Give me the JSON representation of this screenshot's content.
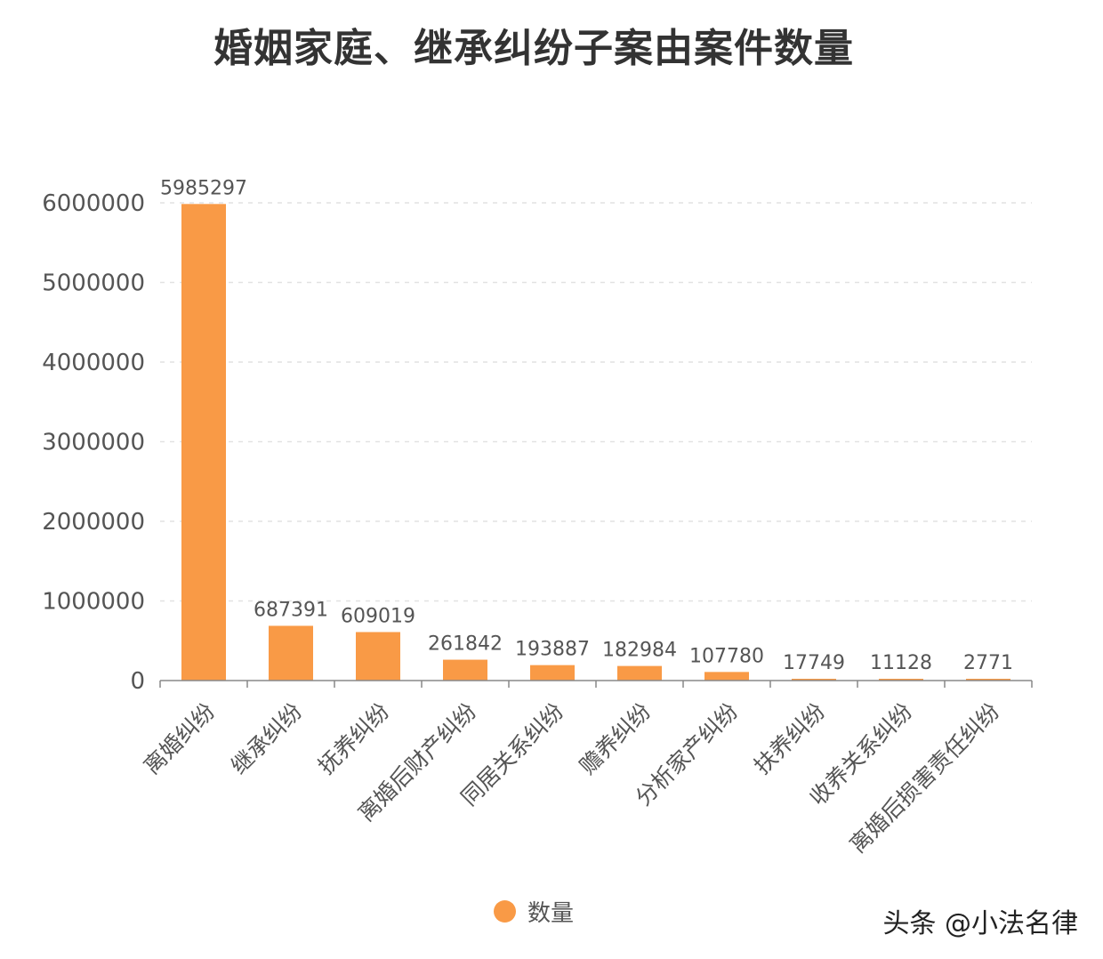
{
  "chart_data": {
    "type": "bar",
    "title": "婚姻家庭、继承纠纷子案由案件数量",
    "categories": [
      "离婚纠纷",
      "继承纠纷",
      "抚养纠纷",
      "离婚后财产纠纷",
      "同居关系纠纷",
      "赡养纠纷",
      "分析家产纠纷",
      "扶养纠纷",
      "收养关系纠纷",
      "离婚后损害责任纠纷"
    ],
    "series": [
      {
        "name": "数量",
        "values": [
          5985297,
          687391,
          609019,
          261842,
          193887,
          182984,
          107780,
          17749,
          11128,
          2771
        ]
      }
    ],
    "data_labels": [
      "5985297",
      "687391",
      "609019",
      "261842",
      "193887",
      "182984",
      "107780",
      "17749",
      "11128",
      "2771"
    ],
    "ylim": [
      0,
      6000000
    ],
    "yticks": [
      "0",
      "1000000",
      "2000000",
      "3000000",
      "4000000",
      "5000000",
      "6000000"
    ],
    "xlabel": "",
    "ylabel": "",
    "grid": true,
    "legend_position": "bottom",
    "bar_color": "#f99a46"
  },
  "watermark": "头条 @小法名律"
}
